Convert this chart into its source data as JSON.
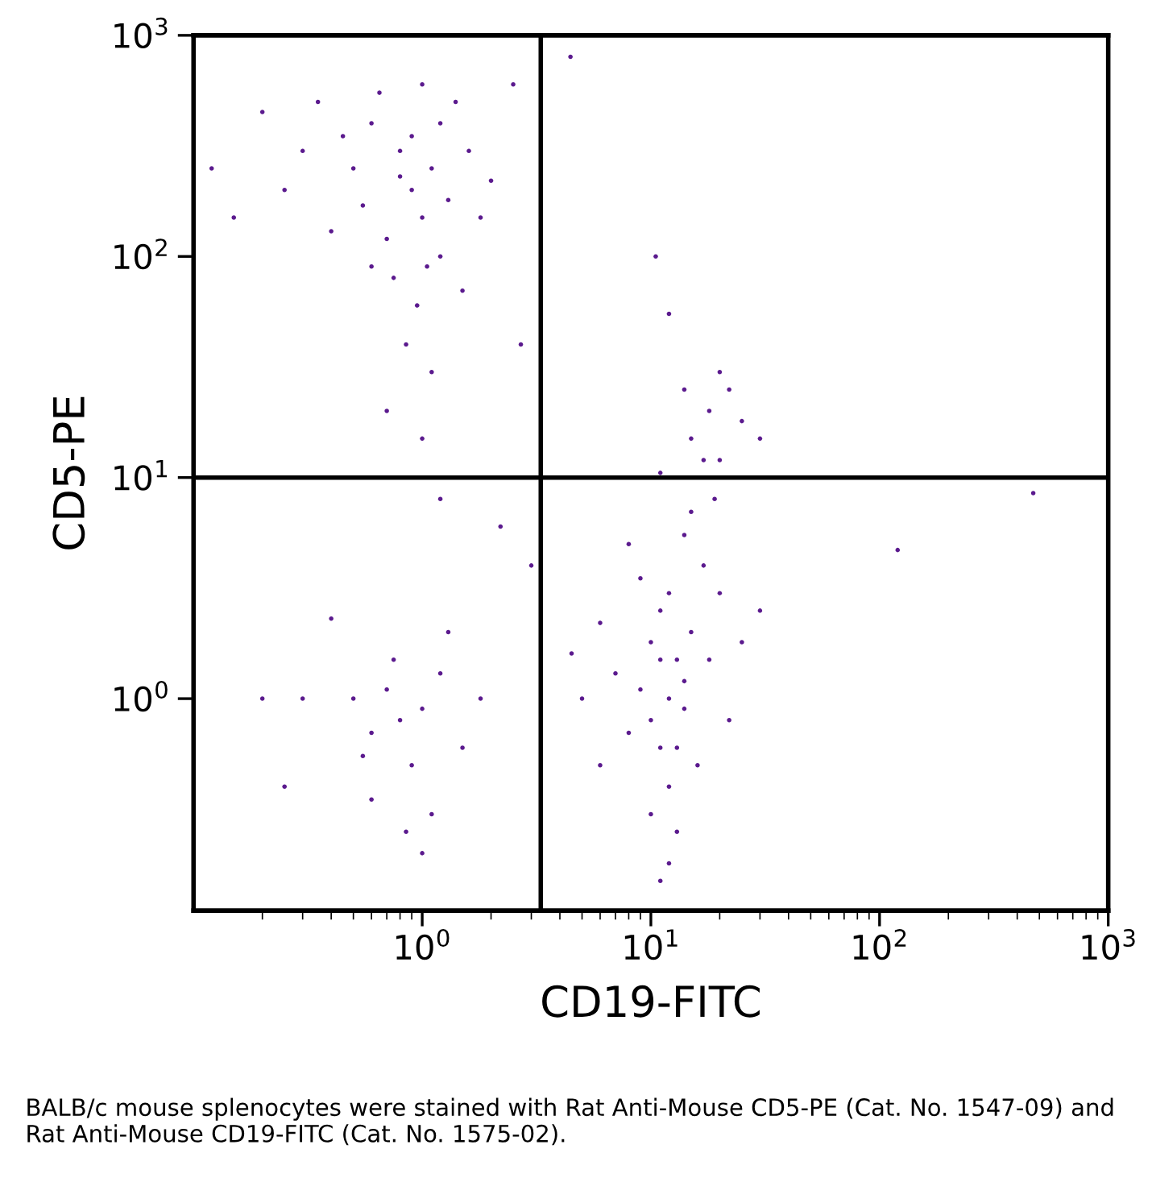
{
  "chart_data": {
    "type": "scatter",
    "xlabel": "CD19-FITC",
    "ylabel": "CD5-PE",
    "log": "xy",
    "grid": false,
    "marker": "circle",
    "xlim": [
      0.1,
      1000
    ],
    "ylim": [
      0.11,
      1000
    ],
    "xticks": [
      {
        "value": 1,
        "label": "10$^{0}$"
      },
      {
        "value": 10,
        "label": "10$^{1}$"
      },
      {
        "value": 100,
        "label": "10$^{2}$"
      },
      {
        "value": 1000,
        "label": "10$^{3}$"
      }
    ],
    "yticks": [
      {
        "value": 1,
        "label": "10$^{0}$"
      },
      {
        "value": 10,
        "label": "10$^{1}$"
      },
      {
        "value": 100,
        "label": "10$^{2}$"
      },
      {
        "value": 1000,
        "label": "10$^{3}$"
      }
    ],
    "ref_lines": [
      {
        "axis": "x",
        "value": 3.3,
        "color": "#000000"
      },
      {
        "axis": "y",
        "value": 10,
        "color": "#000000"
      }
    ],
    "annotations": [
      "BALB/c mouse splenocytes were stained with Rat Anti-Mouse CD5-PE (Cat. No. 1547-09) and Rat Anti-Mouse CD19-FITC (Cat. No. 1575-02)."
    ],
    "series": [
      {
        "color": "#5b1a8e",
        "x": [
          0.9,
          0.8,
          1.0,
          0.7,
          1.1,
          0.6,
          1.3,
          0.75,
          0.95,
          1.2,
          0.5,
          0.45,
          0.65,
          1.0,
          1.4,
          1.6,
          0.85,
          1.1,
          0.55,
          1.8,
          2.0,
          0.4,
          0.3,
          0.25,
          0.2,
          0.35,
          1.5,
          0.7,
          1.0,
          2.5,
          0.9,
          1.2,
          0.8,
          1.05,
          0.6,
          0.12,
          0.15,
          12,
          10,
          14,
          11,
          13,
          9,
          15,
          11,
          12,
          10,
          13,
          16,
          8,
          7,
          6,
          5,
          18,
          20,
          22,
          25,
          17,
          14,
          12,
          11,
          9,
          8,
          15,
          19,
          30,
          6,
          4.5,
          12,
          10,
          13,
          11,
          14,
          0.8,
          0.6,
          1.0,
          0.7,
          0.9,
          1.2,
          0.5,
          0.4,
          0.3,
          0.25,
          0.6,
          0.85,
          1.1,
          1.5,
          0.75,
          1.3,
          0.55,
          1.8,
          0.2,
          1.0,
          15,
          18,
          20,
          17,
          22,
          25,
          14,
          20,
          30,
          11,
          470,
          120,
          4.45,
          2.2,
          1.2,
          3,
          10.5,
          12,
          2.7
        ],
        "values": [
          200,
          300,
          150,
          120,
          250,
          400,
          180,
          80,
          60,
          100,
          250,
          350,
          550,
          600,
          500,
          300,
          40,
          30,
          170,
          150,
          220,
          130,
          300,
          200,
          450,
          500,
          70,
          20,
          15,
          600,
          350,
          400,
          230,
          90,
          90,
          250,
          150,
          1.0,
          0.8,
          1.2,
          1.5,
          0.6,
          1.1,
          2.0,
          2.5,
          0.4,
          0.3,
          0.25,
          0.5,
          0.7,
          1.3,
          2.2,
          1.0,
          1.5,
          3.0,
          0.8,
          1.8,
          4.0,
          5.5,
          0.18,
          0.15,
          3.5,
          5,
          7,
          8,
          2.5,
          0.5,
          1.6,
          3.0,
          1.8,
          1.5,
          0.6,
          0.9,
          0.8,
          0.7,
          0.9,
          1.1,
          0.5,
          1.3,
          1.0,
          2.3,
          1.0,
          0.4,
          0.35,
          0.25,
          0.3,
          0.6,
          1.5,
          2.0,
          0.55,
          1.0,
          1.0,
          0.2,
          15,
          20,
          30,
          12,
          25,
          18,
          25,
          12,
          15,
          10.5,
          8.5,
          4.7,
          800,
          6,
          8,
          4,
          100,
          55,
          40
        ]
      }
    ]
  }
}
